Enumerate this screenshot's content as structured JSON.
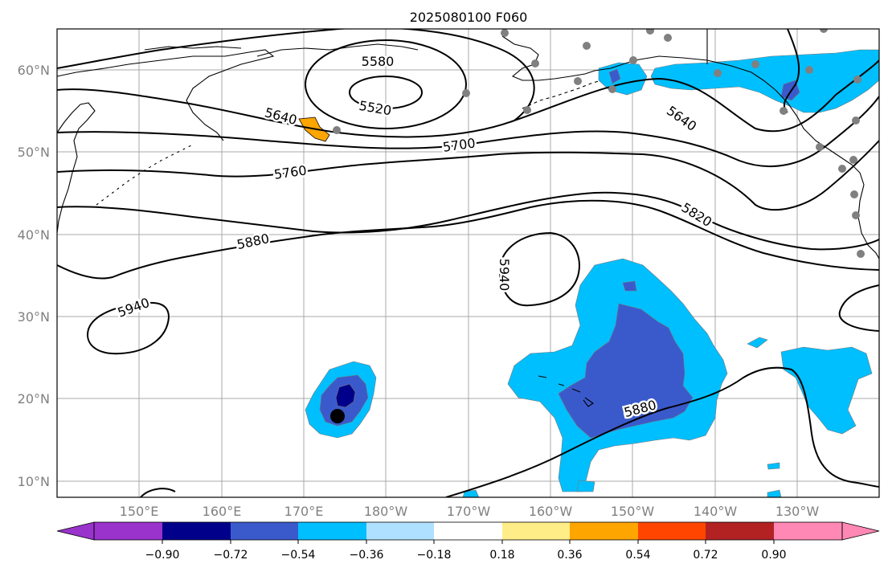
{
  "title": "2025080100 F060",
  "map": {
    "projection": "PlateCarree",
    "lon_range": [
      "140°E",
      "120°W"
    ],
    "lat_range": [
      "8°N",
      "65°N"
    ],
    "gridlines": true,
    "x_ticks": [
      "150°E",
      "160°E",
      "170°E",
      "180°W",
      "170°W",
      "160°W",
      "150°W",
      "140°W",
      "130°W"
    ],
    "y_ticks": [
      "10°N",
      "20°N",
      "30°N",
      "40°N",
      "50°N",
      "60°N"
    ]
  },
  "contours": {
    "field": "500 hPa geopotential height",
    "labels": [
      "5580",
      "5520",
      "5640",
      "5640",
      "5700",
      "5760",
      "5820",
      "5880",
      "5940",
      "5940",
      "5880"
    ]
  },
  "shading": {
    "colors": [
      "#9933cc",
      "#00008b",
      "#3a5acc",
      "#00bfff",
      "#b0e0ff",
      "#ffffff",
      "#ffee88",
      "#ffa500",
      "#ff4500",
      "#b22222",
      "#ff88b4"
    ]
  },
  "colorbar": {
    "ticks": [
      "−0.90",
      "−0.72",
      "−0.54",
      "−0.36",
      "−0.18",
      "0.18",
      "0.36",
      "0.54",
      "0.72",
      "0.90"
    ],
    "extend": "both"
  },
  "markers": {
    "storm_center": "black-dot",
    "stations": "gray-dots"
  }
}
